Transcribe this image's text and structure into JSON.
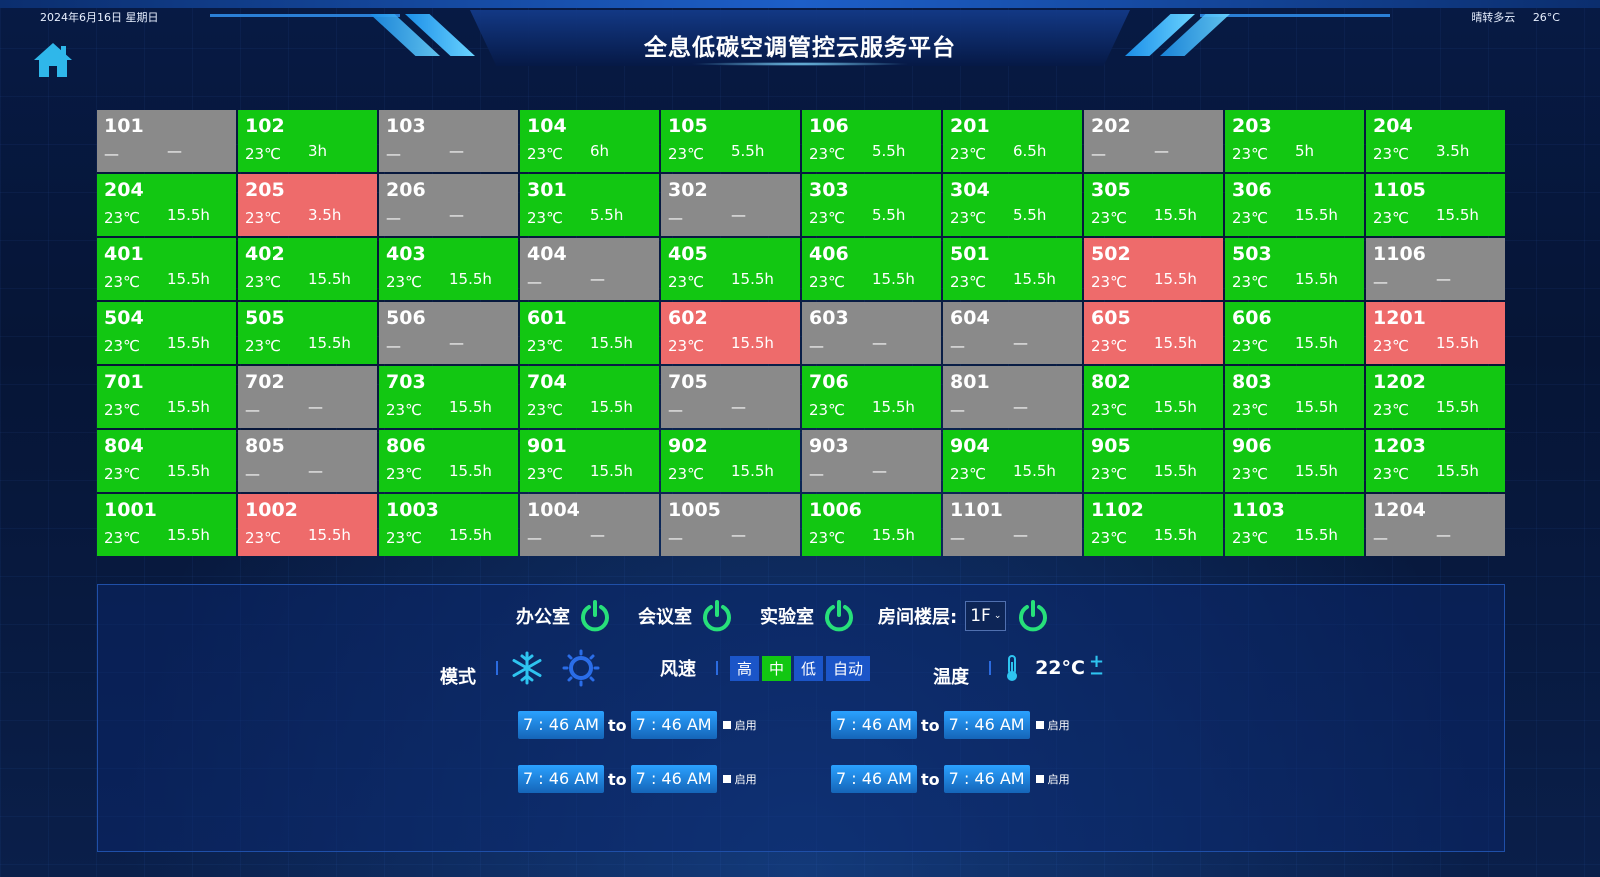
{
  "header": {
    "date": "2024年6月16日  星期日",
    "weather": "晴转多云",
    "outdoor_temp": "26°C",
    "title": "全息低碳空调管控云服务平台"
  },
  "rooms": [
    {
      "room": "101",
      "temp": "—",
      "duration": "—",
      "status": "off"
    },
    {
      "room": "102",
      "temp": "23℃",
      "duration": "3h",
      "status": "on"
    },
    {
      "room": "103",
      "temp": "—",
      "duration": "—",
      "status": "off"
    },
    {
      "room": "104",
      "temp": "23℃",
      "duration": "6h",
      "status": "on"
    },
    {
      "room": "105",
      "temp": "23℃",
      "duration": "5.5h",
      "status": "on"
    },
    {
      "room": "106",
      "temp": "23℃",
      "duration": "5.5h",
      "status": "on"
    },
    {
      "room": "201",
      "temp": "23℃",
      "duration": "6.5h",
      "status": "on"
    },
    {
      "room": "202",
      "temp": "—",
      "duration": "—",
      "status": "off"
    },
    {
      "room": "203",
      "temp": "23℃",
      "duration": "5h",
      "status": "on"
    },
    {
      "room": "204",
      "temp": "23℃",
      "duration": "3.5h",
      "status": "on"
    },
    {
      "room": "204",
      "temp": "23℃",
      "duration": "15.5h",
      "status": "on"
    },
    {
      "room": "205",
      "temp": "23℃",
      "duration": "3.5h",
      "status": "alarm"
    },
    {
      "room": "206",
      "temp": "—",
      "duration": "—",
      "status": "off"
    },
    {
      "room": "301",
      "temp": "23℃",
      "duration": "5.5h",
      "status": "on"
    },
    {
      "room": "302",
      "temp": "—",
      "duration": "—",
      "status": "off"
    },
    {
      "room": "303",
      "temp": "23℃",
      "duration": "5.5h",
      "status": "on"
    },
    {
      "room": "304",
      "temp": "23℃",
      "duration": "5.5h",
      "status": "on"
    },
    {
      "room": "305",
      "temp": "23℃",
      "duration": "15.5h",
      "status": "on"
    },
    {
      "room": "306",
      "temp": "23℃",
      "duration": "15.5h",
      "status": "on"
    },
    {
      "room": "1105",
      "temp": "23℃",
      "duration": "15.5h",
      "status": "on"
    },
    {
      "room": "401",
      "temp": "23℃",
      "duration": "15.5h",
      "status": "on"
    },
    {
      "room": "402",
      "temp": "23℃",
      "duration": "15.5h",
      "status": "on"
    },
    {
      "room": "403",
      "temp": "23℃",
      "duration": "15.5h",
      "status": "on"
    },
    {
      "room": "404",
      "temp": "—",
      "duration": "—",
      "status": "off"
    },
    {
      "room": "405",
      "temp": "23℃",
      "duration": "15.5h",
      "status": "on"
    },
    {
      "room": "406",
      "temp": "23℃",
      "duration": "15.5h",
      "status": "on"
    },
    {
      "room": "501",
      "temp": "23℃",
      "duration": "15.5h",
      "status": "on"
    },
    {
      "room": "502",
      "temp": "23℃",
      "duration": "15.5h",
      "status": "alarm"
    },
    {
      "room": "503",
      "temp": "23℃",
      "duration": "15.5h",
      "status": "on"
    },
    {
      "room": "1106",
      "temp": "—",
      "duration": "—",
      "status": "off"
    },
    {
      "room": "504",
      "temp": "23℃",
      "duration": "15.5h",
      "status": "on"
    },
    {
      "room": "505",
      "temp": "23℃",
      "duration": "15.5h",
      "status": "on"
    },
    {
      "room": "506",
      "temp": "—",
      "duration": "—",
      "status": "off"
    },
    {
      "room": "601",
      "temp": "23℃",
      "duration": "15.5h",
      "status": "on"
    },
    {
      "room": "602",
      "temp": "23℃",
      "duration": "15.5h",
      "status": "alarm"
    },
    {
      "room": "603",
      "temp": "—",
      "duration": "—",
      "status": "off"
    },
    {
      "room": "604",
      "temp": "—",
      "duration": "—",
      "status": "off"
    },
    {
      "room": "605",
      "temp": "23℃",
      "duration": "15.5h",
      "status": "alarm"
    },
    {
      "room": "606",
      "temp": "23℃",
      "duration": "15.5h",
      "status": "on"
    },
    {
      "room": "1201",
      "temp": "23℃",
      "duration": "15.5h",
      "status": "alarm"
    },
    {
      "room": "701",
      "temp": "23℃",
      "duration": "15.5h",
      "status": "on"
    },
    {
      "room": "702",
      "temp": "—",
      "duration": "—",
      "status": "off"
    },
    {
      "room": "703",
      "temp": "23℃",
      "duration": "15.5h",
      "status": "on"
    },
    {
      "room": "704",
      "temp": "23℃",
      "duration": "15.5h",
      "status": "on"
    },
    {
      "room": "705",
      "temp": "—",
      "duration": "—",
      "status": "off"
    },
    {
      "room": "706",
      "temp": "23℃",
      "duration": "15.5h",
      "status": "on"
    },
    {
      "room": "801",
      "temp": "—",
      "duration": "—",
      "status": "off"
    },
    {
      "room": "802",
      "temp": "23℃",
      "duration": "15.5h",
      "status": "on"
    },
    {
      "room": "803",
      "temp": "23℃",
      "duration": "15.5h",
      "status": "on"
    },
    {
      "room": "1202",
      "temp": "23℃",
      "duration": "15.5h",
      "status": "on"
    },
    {
      "room": "804",
      "temp": "23℃",
      "duration": "15.5h",
      "status": "on"
    },
    {
      "room": "805",
      "temp": "—",
      "duration": "—",
      "status": "off"
    },
    {
      "room": "806",
      "temp": "23℃",
      "duration": "15.5h",
      "status": "on"
    },
    {
      "room": "901",
      "temp": "23℃",
      "duration": "15.5h",
      "status": "on"
    },
    {
      "room": "902",
      "temp": "23℃",
      "duration": "15.5h",
      "status": "on"
    },
    {
      "room": "903",
      "temp": "—",
      "duration": "—",
      "status": "off"
    },
    {
      "room": "904",
      "temp": "23℃",
      "duration": "15.5h",
      "status": "on"
    },
    {
      "room": "905",
      "temp": "23℃",
      "duration": "15.5h",
      "status": "on"
    },
    {
      "room": "906",
      "temp": "23℃",
      "duration": "15.5h",
      "status": "on"
    },
    {
      "room": "1203",
      "temp": "23℃",
      "duration": "15.5h",
      "status": "on"
    },
    {
      "room": "1001",
      "temp": "23℃",
      "duration": "15.5h",
      "status": "on"
    },
    {
      "room": "1002",
      "temp": "23℃",
      "duration": "15.5h",
      "status": "alarm"
    },
    {
      "room": "1003",
      "temp": "23℃",
      "duration": "15.5h",
      "status": "on"
    },
    {
      "room": "1004",
      "temp": "—",
      "duration": "—",
      "status": "off"
    },
    {
      "room": "1005",
      "temp": "—",
      "duration": "—",
      "status": "off"
    },
    {
      "room": "1006",
      "temp": "23℃",
      "duration": "15.5h",
      "status": "on"
    },
    {
      "room": "1101",
      "temp": "—",
      "duration": "—",
      "status": "off"
    },
    {
      "room": "1102",
      "temp": "23℃",
      "duration": "15.5h",
      "status": "on"
    },
    {
      "room": "1103",
      "temp": "23℃",
      "duration": "15.5h",
      "status": "on"
    },
    {
      "room": "1204",
      "temp": "—",
      "duration": "—",
      "status": "off"
    }
  ],
  "status_colors": {
    "on": "#12c712",
    "off": "#8a8a8a",
    "alarm": "#ee6b6b"
  },
  "controls": {
    "office_label": "办公室",
    "meeting_label": "会议室",
    "lab_label": "实验室",
    "floor_label": "房间楼层:",
    "floor_value": "1F",
    "mode_label": "模式",
    "mode_icons": [
      "snowflake-icon",
      "sun-icon"
    ],
    "fan_label": "风速",
    "fan_options": [
      "高",
      "中",
      "低",
      "自动"
    ],
    "fan_selected": "中",
    "temp_label": "温度",
    "temp_value": "22°C",
    "plus": "+",
    "minus": "−"
  },
  "schedules": [
    {
      "from": "7 : 46 AM",
      "to_word": "to",
      "to": "7 : 46 AM",
      "enable": "启用"
    },
    {
      "from": "7 : 46 AM",
      "to_word": "to",
      "to": "7 : 46 AM",
      "enable": "启用"
    },
    {
      "from": "7 : 46 AM",
      "to_word": "to",
      "to": "7 : 46 AM",
      "enable": "启用"
    },
    {
      "from": "7 : 46 AM",
      "to_word": "to",
      "to": "7 : 46 AM",
      "enable": "启用"
    }
  ]
}
